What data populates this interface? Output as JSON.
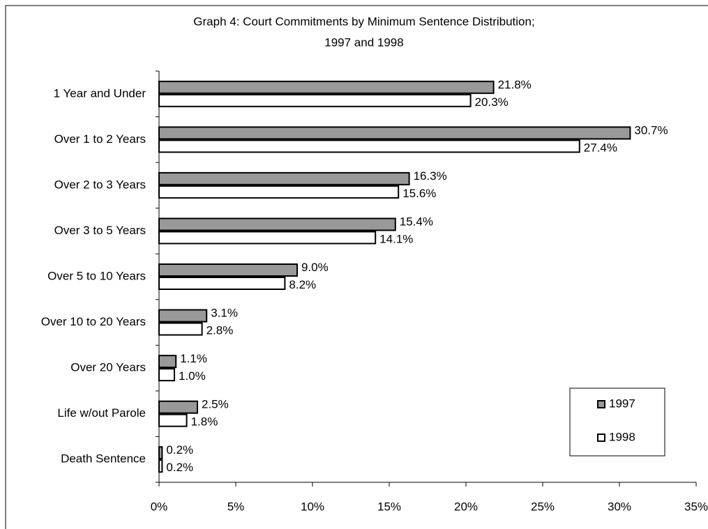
{
  "chart_data": {
    "type": "hbar",
    "title": [
      "Graph 4: Court Commitments by Minimum Sentence Distribution;",
      "1997 and 1998"
    ],
    "categories": [
      "1 Year and Under",
      "Over 1 to 2 Years",
      "Over 2 to 3 Years",
      "Over 3 to 5 Years",
      "Over 5 to 10 Years",
      "Over 10 to 20 Years",
      "Over 20 Years",
      "Life w/out Parole",
      "Death Sentence"
    ],
    "series": [
      {
        "name": "1997",
        "color": "#999999",
        "values": [
          21.8,
          30.7,
          16.3,
          15.4,
          9.0,
          3.1,
          1.1,
          2.5,
          0.2
        ],
        "value_labels": [
          "21.8%",
          "30.7%",
          "16.3%",
          "15.4%",
          "9.0%",
          "3.1%",
          "1.1%",
          "2.5%",
          "0.2%"
        ]
      },
      {
        "name": "1998",
        "color": "#ffffff",
        "values": [
          20.3,
          27.4,
          15.6,
          14.1,
          8.2,
          2.8,
          1.0,
          1.8,
          0.2
        ],
        "value_labels": [
          "20.3%",
          "27.4%",
          "15.6%",
          "14.1%",
          "8.2%",
          "2.8%",
          "1.0%",
          "1.8%",
          "0.2%"
        ]
      }
    ],
    "xlim": [
      0,
      35
    ],
    "xticks": [
      {
        "value": 0,
        "label": "0%"
      },
      {
        "value": 5,
        "label": "5%"
      },
      {
        "value": 10,
        "label": "10%"
      },
      {
        "value": 15,
        "label": "15%"
      },
      {
        "value": 20,
        "label": "20%"
      },
      {
        "value": 25,
        "label": "25%"
      },
      {
        "value": 30,
        "label": "30%"
      },
      {
        "value": 35,
        "label": "35%"
      }
    ],
    "legend": "lower right"
  }
}
